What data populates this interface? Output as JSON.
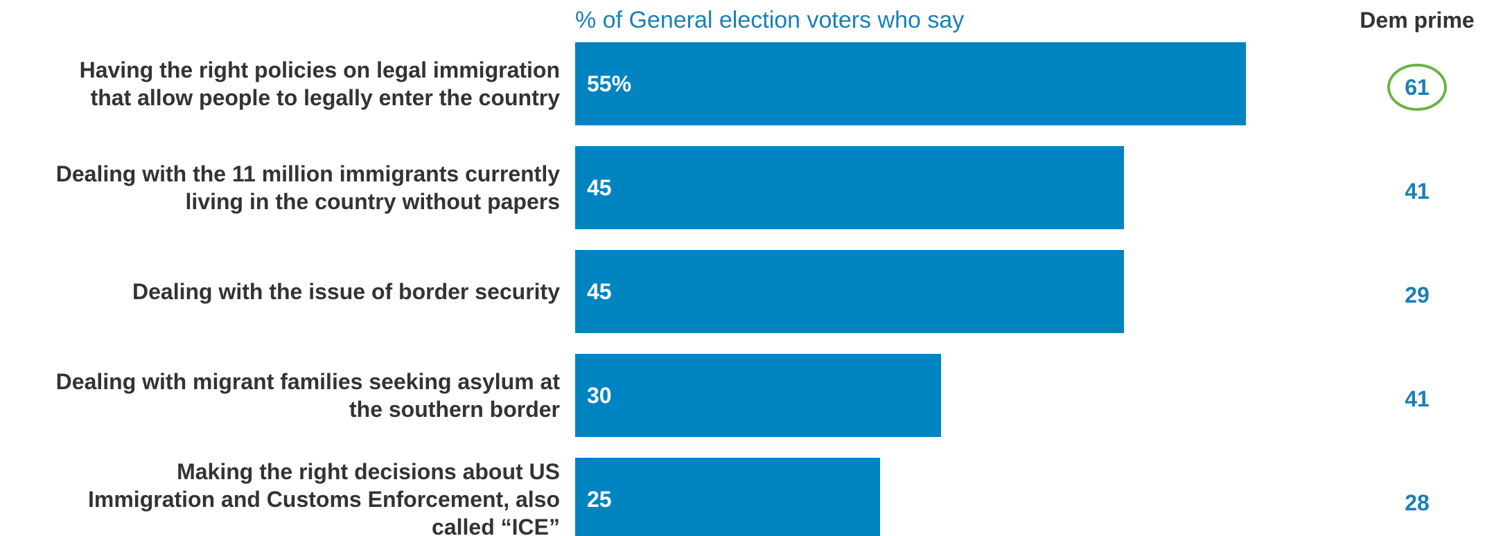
{
  "chart_data": {
    "type": "bar",
    "orientation": "horizontal",
    "title": "",
    "subtitle": "% of General election voters who say",
    "xlabel": "",
    "ylabel": "",
    "xlim": [
      0,
      60
    ],
    "grid": false,
    "legend": "none",
    "categories": [
      [
        "Having the right policies on legal immigration",
        "that allow people to legally enter the country"
      ],
      [
        "Dealing with the 11 million immigrants currently",
        "living in the country without papers"
      ],
      [
        "Dealing with the issue of border security"
      ],
      [
        "Dealing with migrant families seeking asylum at",
        "the southern border"
      ],
      [
        "Making the right decisions about US",
        "Immigration and Customs Enforcement, also",
        "called “ICE”"
      ]
    ],
    "series": [
      {
        "values": [
          55,
          45,
          45,
          30,
          25
        ],
        "labels": [
          "55%",
          "45",
          "45",
          "30",
          "25"
        ]
      }
    ],
    "side_column": {
      "header": "Dem prime",
      "values": [
        "61",
        "41",
        "29",
        "41",
        "28"
      ],
      "highlighted_index": 0
    },
    "colors": {
      "bar": "#0083c1",
      "subtitle": "#1a7fb8",
      "side_value": "#1a7fb8",
      "highlight_ring": "#6ab344",
      "category_text": "#333333"
    }
  }
}
